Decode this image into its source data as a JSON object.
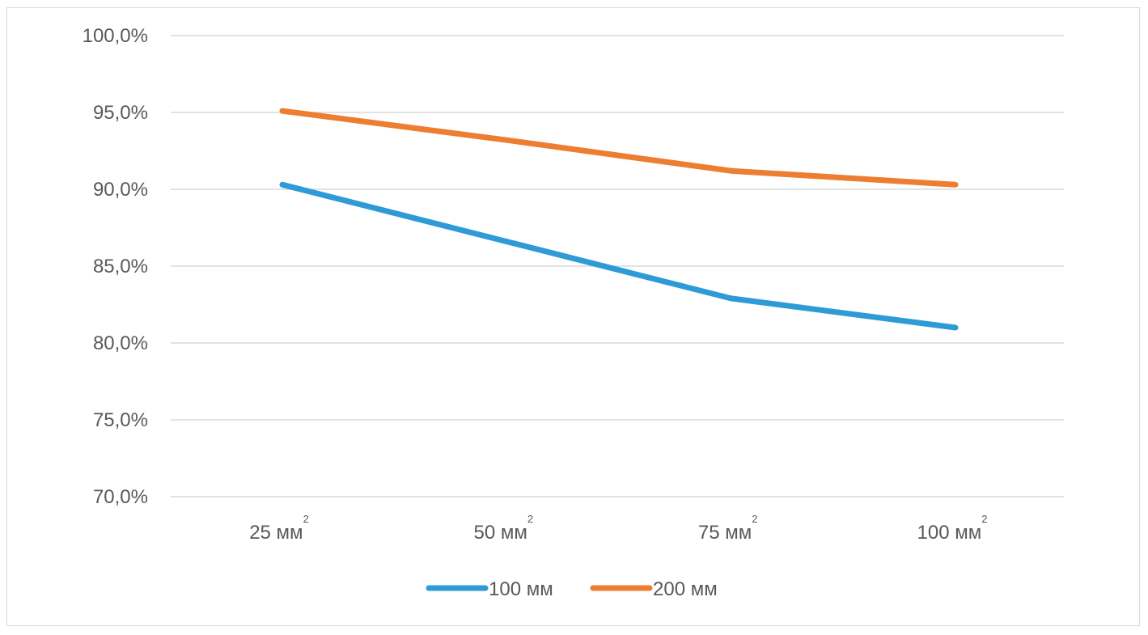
{
  "chart_data": {
    "type": "line",
    "title": "",
    "xlabel": "",
    "ylabel": "",
    "categories": [
      "25 мм",
      "50 мм",
      "75 мм",
      "100 мм"
    ],
    "category_superscript": "2",
    "y_ticks": [
      "100,0%",
      "95,0%",
      "90,0%",
      "85,0%",
      "80,0%",
      "75,0%",
      "70,0%"
    ],
    "ylim": [
      70,
      100
    ],
    "y_step": 5,
    "grid": true,
    "legend_position": "bottom",
    "series": [
      {
        "name": "100 мм",
        "color": "#2E9BD6",
        "values": [
          90.3,
          86.6,
          82.9,
          81.0
        ]
      },
      {
        "name": "200 мм",
        "color": "#ED7D31",
        "values": [
          95.1,
          93.2,
          91.2,
          90.3
        ]
      }
    ]
  }
}
